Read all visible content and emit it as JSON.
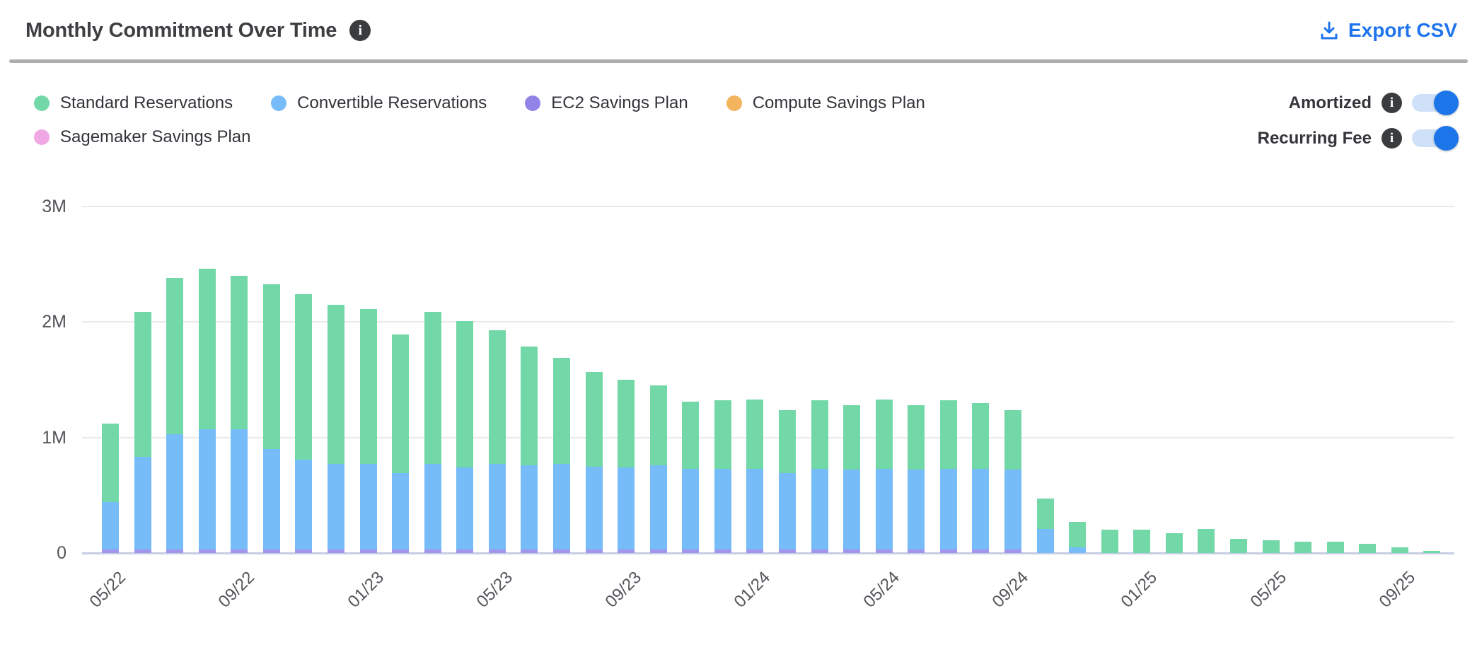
{
  "header": {
    "title": "Monthly Commitment Over Time",
    "info_icon": "info-circle",
    "export_label": "Export CSV",
    "export_icon": "download-icon"
  },
  "legend": [
    {
      "label": "Standard Reservations",
      "color": "#73d8a8"
    },
    {
      "label": "Convertible Reservations",
      "color": "#76bcf8"
    },
    {
      "label": "EC2 Savings Plan",
      "color": "#9184e8"
    },
    {
      "label": "Compute Savings Plan",
      "color": "#f2b45c"
    },
    {
      "label": "Sagemaker Savings Plan",
      "color": "#efa8e4"
    }
  ],
  "toggles": [
    {
      "label": "Amortized",
      "info_icon": "info-circle",
      "state": "on"
    },
    {
      "label": "Recurring Fee",
      "info_icon": "info-circle",
      "state": "on"
    }
  ],
  "colors": {
    "accent_blue": "#1f74ee",
    "toggle_track": "#cee1f9",
    "toggle_knob": "#1d76e9",
    "info_badge_bg": "#3b3c3e",
    "title_text": "#3e3f42",
    "axis_text": "#54555a",
    "gridline": "#e9e9eb",
    "axis_line": "#c7cde3",
    "divider": "#aeaeae"
  },
  "chart_data": {
    "type": "bar",
    "stacked": true,
    "unit": "M",
    "ylim": [
      0,
      3.13
    ],
    "grid": "horizontal",
    "legend_position": "top-left",
    "y_ticks": [
      {
        "label": "3M",
        "value": 3
      },
      {
        "label": "2M",
        "value": 2
      },
      {
        "label": "1M",
        "value": 1
      },
      {
        "label": "0",
        "value": 0
      }
    ],
    "x": [
      "05/22",
      "06/22",
      "07/22",
      "08/22",
      "09/22",
      "10/22",
      "11/22",
      "12/22",
      "01/23",
      "02/23",
      "03/23",
      "04/23",
      "05/23",
      "06/23",
      "07/23",
      "08/23",
      "09/23",
      "10/23",
      "11/23",
      "12/23",
      "01/24",
      "02/24",
      "03/24",
      "04/24",
      "05/24",
      "06/24",
      "07/24",
      "08/24",
      "09/24",
      "10/24",
      "11/24",
      "12/24",
      "01/25",
      "02/25",
      "03/25",
      "04/25",
      "05/25",
      "06/25",
      "07/25",
      "08/25",
      "09/25",
      "10/25"
    ],
    "x_tick_labels": [
      "05/22",
      "09/22",
      "01/23",
      "05/23",
      "09/23",
      "01/24",
      "05/24",
      "09/24",
      "01/25",
      "05/25",
      "09/25"
    ],
    "x_tick_every": 4,
    "series": [
      {
        "name": "Standard Reservations",
        "color": "#73d8a8",
        "values": [
          0.68,
          1.26,
          1.35,
          1.39,
          1.33,
          1.43,
          1.43,
          1.38,
          1.34,
          1.2,
          1.32,
          1.27,
          1.16,
          1.03,
          0.92,
          0.82,
          0.76,
          0.69,
          0.58,
          0.59,
          0.6,
          0.55,
          0.59,
          0.56,
          0.6,
          0.56,
          0.59,
          0.57,
          0.52,
          0.26,
          0.22,
          0.2,
          0.2,
          0.17,
          0.21,
          0.12,
          0.11,
          0.1,
          0.1,
          0.08,
          0.05,
          0.02
        ]
      },
      {
        "name": "Convertible Reservations",
        "color": "#76bcf8",
        "values": [
          0.41,
          0.8,
          1.0,
          1.04,
          1.04,
          0.87,
          0.78,
          0.74,
          0.74,
          0.66,
          0.74,
          0.71,
          0.74,
          0.73,
          0.74,
          0.72,
          0.71,
          0.73,
          0.7,
          0.7,
          0.7,
          0.66,
          0.7,
          0.69,
          0.7,
          0.69,
          0.7,
          0.7,
          0.69,
          0.21,
          0.05,
          0,
          0,
          0,
          0,
          0,
          0,
          0,
          0,
          0,
          0,
          0
        ]
      },
      {
        "name": "EC2 Savings Plan",
        "color": "#a396ea",
        "values": [
          0.03,
          0.03,
          0.03,
          0.03,
          0.03,
          0.03,
          0.03,
          0.03,
          0.03,
          0.03,
          0.03,
          0.03,
          0.03,
          0.03,
          0.03,
          0.03,
          0.03,
          0.03,
          0.03,
          0.03,
          0.03,
          0.03,
          0.03,
          0.03,
          0.03,
          0.03,
          0.03,
          0.03,
          0.03,
          0,
          0,
          0,
          0,
          0,
          0,
          0,
          0,
          0,
          0,
          0,
          0,
          0
        ]
      },
      {
        "name": "Compute Savings Plan",
        "color": "#f2b45c",
        "values": [
          0,
          0,
          0,
          0,
          0,
          0,
          0,
          0,
          0,
          0,
          0,
          0,
          0,
          0,
          0,
          0,
          0,
          0,
          0,
          0,
          0,
          0,
          0,
          0,
          0,
          0,
          0,
          0,
          0,
          0,
          0,
          0,
          0,
          0,
          0,
          0,
          0,
          0,
          0,
          0,
          0,
          0
        ]
      },
      {
        "name": "Sagemaker Savings Plan",
        "color": "#efa8e4",
        "values": [
          0,
          0,
          0,
          0,
          0,
          0,
          0,
          0,
          0,
          0,
          0,
          0,
          0,
          0,
          0,
          0,
          0,
          0,
          0,
          0,
          0,
          0,
          0,
          0,
          0,
          0,
          0,
          0,
          0,
          0,
          0,
          0,
          0,
          0,
          0,
          0,
          0,
          0,
          0,
          0,
          0,
          0
        ]
      }
    ]
  }
}
